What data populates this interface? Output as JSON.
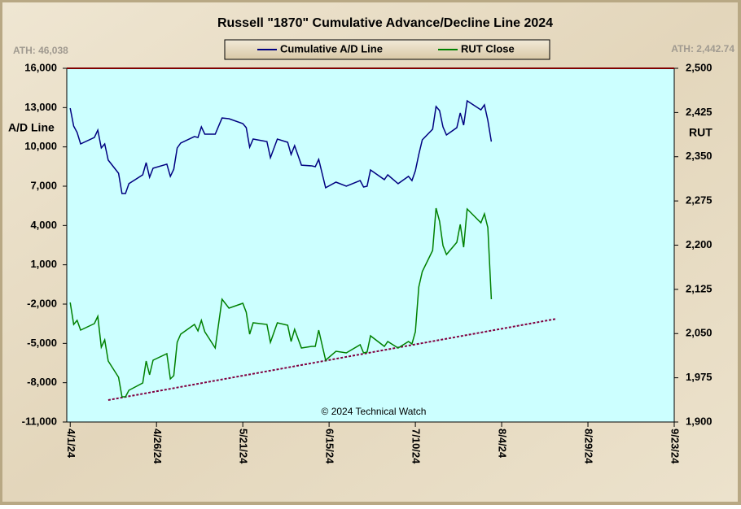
{
  "chart_data": {
    "type": "line",
    "title": "Russell \"1870\" Cumulative Advance/Decline Line 2024",
    "ylabel": "A/D Line",
    "y2label": "RUT",
    "ath_left": "ATH: 46,038",
    "ath_right": "ATH: 2,442.74",
    "annotation": "© 2024 Technical Watch",
    "xlim": [
      "2024-03-31",
      "2024-09-23"
    ],
    "xticks": [
      {
        "value": "2024-04-01",
        "label": "4/1/24"
      },
      {
        "value": "2024-04-26",
        "label": "4/26/24"
      },
      {
        "value": "2024-05-21",
        "label": "5/21/24"
      },
      {
        "value": "2024-06-15",
        "label": "6/15/24"
      },
      {
        "value": "2024-07-10",
        "label": "7/10/24"
      },
      {
        "value": "2024-08-04",
        "label": "8/4/24"
      },
      {
        "value": "2024-08-29",
        "label": "8/29/24"
      },
      {
        "value": "2024-09-23",
        "label": "9/23/24"
      }
    ],
    "ylim": [
      -11000,
      16000
    ],
    "yticks": [
      {
        "value": -11000,
        "label": "-11,000"
      },
      {
        "value": -8000,
        "label": "-8,000"
      },
      {
        "value": -5000,
        "label": "-5,000"
      },
      {
        "value": -2000,
        "label": "-2,000"
      },
      {
        "value": 1000,
        "label": "1,000"
      },
      {
        "value": 4000,
        "label": "4,000"
      },
      {
        "value": 7000,
        "label": "7,000"
      },
      {
        "value": 10000,
        "label": "10,000"
      },
      {
        "value": 13000,
        "label": "13,000"
      },
      {
        "value": 16000,
        "label": "16,000"
      }
    ],
    "y2lim": [
      1900,
      2500
    ],
    "y2ticks": [
      {
        "value": 1900,
        "label": "1,900"
      },
      {
        "value": 1975,
        "label": "1,975"
      },
      {
        "value": 2050,
        "label": "2,050"
      },
      {
        "value": 2125,
        "label": "2,125"
      },
      {
        "value": 2200,
        "label": "2,200"
      },
      {
        "value": 2275,
        "label": "2,275"
      },
      {
        "value": 2350,
        "label": "2,350"
      },
      {
        "value": 2425,
        "label": "2,425"
      },
      {
        "value": 2500,
        "label": "2,500"
      }
    ],
    "x": [
      "2024-04-01",
      "2024-04-02",
      "2024-04-03",
      "2024-04-04",
      "2024-04-08",
      "2024-04-09",
      "2024-04-10",
      "2024-04-11",
      "2024-04-12",
      "2024-04-15",
      "2024-04-16",
      "2024-04-17",
      "2024-04-18",
      "2024-04-22",
      "2024-04-23",
      "2024-04-24",
      "2024-04-25",
      "2024-04-29",
      "2024-04-30",
      "2024-05-01",
      "2024-05-02",
      "2024-05-03",
      "2024-05-07",
      "2024-05-08",
      "2024-05-09",
      "2024-05-10",
      "2024-05-13",
      "2024-05-15",
      "2024-05-17",
      "2024-05-21",
      "2024-05-22",
      "2024-05-23",
      "2024-05-24",
      "2024-05-28",
      "2024-05-29",
      "2024-05-31",
      "2024-06-03",
      "2024-06-04",
      "2024-06-05",
      "2024-06-07",
      "2024-06-10",
      "2024-06-11",
      "2024-06-12",
      "2024-06-14",
      "2024-06-17",
      "2024-06-20",
      "2024-06-24",
      "2024-06-25",
      "2024-06-26",
      "2024-06-27",
      "2024-07-01",
      "2024-07-02",
      "2024-07-05",
      "2024-07-08",
      "2024-07-09",
      "2024-07-10",
      "2024-07-11",
      "2024-07-12",
      "2024-07-15",
      "2024-07-16",
      "2024-07-17",
      "2024-07-18",
      "2024-07-19",
      "2024-07-22",
      "2024-07-23",
      "2024-07-24",
      "2024-07-25",
      "2024-07-29",
      "2024-07-30",
      "2024-07-31",
      "2024-08-01"
    ],
    "series": [
      {
        "name": "Cumulative A/D Line",
        "color": "#000080",
        "axis": "y",
        "values": [
          12960,
          11590,
          11100,
          10230,
          10720,
          11280,
          9920,
          10230,
          8990,
          7990,
          6440,
          6440,
          7190,
          7870,
          8800,
          7680,
          8370,
          8680,
          7750,
          8300,
          9920,
          10290,
          10790,
          10720,
          11530,
          10970,
          10970,
          12210,
          12150,
          11780,
          11470,
          9980,
          10600,
          10410,
          9170,
          10600,
          10350,
          9420,
          10100,
          8610,
          8550,
          8490,
          9050,
          6880,
          7310,
          7000,
          7430,
          6940,
          7000,
          8240,
          7500,
          7870,
          7190,
          7750,
          7430,
          8180,
          9420,
          10540,
          11350,
          13080,
          12770,
          11530,
          10910,
          11470,
          12590,
          11660,
          13520,
          12830,
          13210,
          12030,
          10410
        ]
      },
      {
        "name": "RUT Close",
        "color": "#008000",
        "axis": "y2",
        "values": [
          2102.8,
          2065.5,
          2072.4,
          2055.9,
          2066.9,
          2079.3,
          2026.9,
          2039.3,
          2003.4,
          1975.9,
          1942.8,
          1942.8,
          1953.8,
          1966.2,
          2003.4,
          1980.0,
          2004.8,
          2015.9,
          1973.1,
          1978.6,
          2035.2,
          2049.0,
          2065.5,
          2054.5,
          2072.4,
          2053.1,
          2025.5,
          2108.3,
          2093.1,
          2101.4,
          2086.2,
          2049.0,
          2068.3,
          2065.5,
          2035.2,
          2068.3,
          2064.1,
          2036.6,
          2057.2,
          2025.5,
          2028.3,
          2028.3,
          2055.9,
          2004.8,
          2020.0,
          2017.2,
          2031.0,
          2017.2,
          2018.6,
          2046.2,
          2028.3,
          2036.6,
          2025.5,
          2036.6,
          2032.4,
          2053.1,
          2128.9,
          2155.2,
          2191.0,
          2262.8,
          2240.7,
          2199.3,
          2184.1,
          2204.8,
          2235.2,
          2196.6,
          2261.4,
          2237.9,
          2253.1,
          2229.7,
          2108.3
        ]
      }
    ],
    "trendline": {
      "color": "#800040",
      "axis": "y2",
      "x": [
        "2024-04-12",
        "2024-08-20"
      ],
      "values": [
        1937.2,
        2075.2
      ]
    }
  }
}
